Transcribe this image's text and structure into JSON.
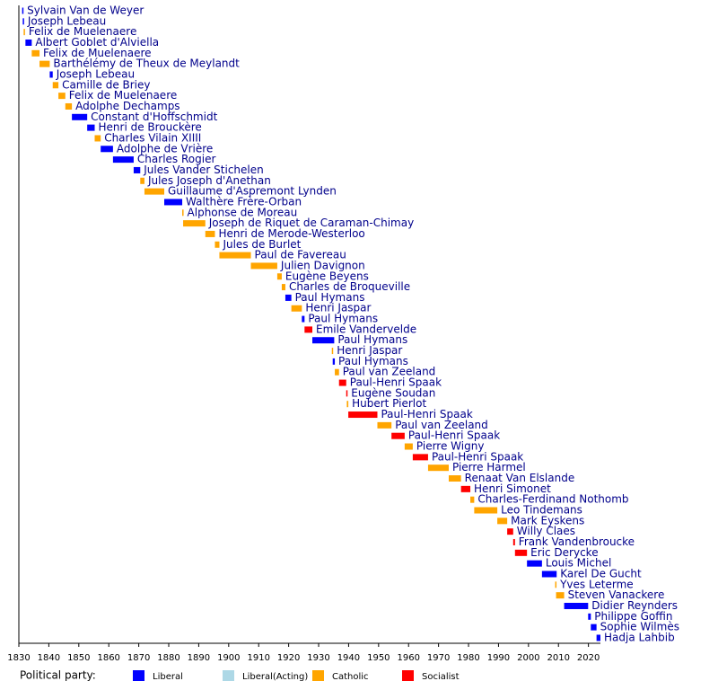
{
  "chart_data": {
    "type": "timeline",
    "xlim": [
      1830,
      2024
    ],
    "xticks": [
      1830,
      1840,
      1850,
      1860,
      1870,
      1880,
      1890,
      1900,
      1910,
      1920,
      1930,
      1940,
      1950,
      1960,
      1970,
      1980,
      1990,
      2000,
      2010,
      2020
    ],
    "legend_title": "Political party:",
    "parties": [
      {
        "name": "Liberal",
        "color": "#0000ff"
      },
      {
        "name": "Liberal(Acting)",
        "color": "#add8e6"
      },
      {
        "name": "Catholic",
        "color": "#ffa500"
      },
      {
        "name": "Socialist",
        "color": "#ff0000"
      }
    ],
    "tasks": [
      {
        "name": "Sylvain Van de Weyer",
        "start": 1831.1,
        "end": 1831.3,
        "party": "Liberal"
      },
      {
        "name": "Joseph Lebeau",
        "start": 1831.3,
        "end": 1831.6,
        "party": "Liberal"
      },
      {
        "name": "Felix de Muelenaere",
        "start": 1831.6,
        "end": 1831.9,
        "party": "Catholic"
      },
      {
        "name": "Albert Goblet d'Alviella",
        "start": 1832.2,
        "end": 1834.3,
        "party": "Liberal"
      },
      {
        "name": "Felix de Muelenaere",
        "start": 1834.3,
        "end": 1836.9,
        "party": "Catholic"
      },
      {
        "name": "Barthélémy de Theux de Meylandt",
        "start": 1836.9,
        "end": 1840.3,
        "party": "Catholic"
      },
      {
        "name": "Joseph Lebeau",
        "start": 1840.3,
        "end": 1841.3,
        "party": "Liberal"
      },
      {
        "name": "Camille de Briey",
        "start": 1841.3,
        "end": 1843.2,
        "party": "Catholic"
      },
      {
        "name": "Felix de Muelenaere",
        "start": 1843.2,
        "end": 1845.5,
        "party": "Catholic"
      },
      {
        "name": "Adolphe Dechamps",
        "start": 1845.5,
        "end": 1847.7,
        "party": "Catholic"
      },
      {
        "name": "Constant d'Hoffschmidt",
        "start": 1847.7,
        "end": 1852.8,
        "party": "Liberal"
      },
      {
        "name": "Henri de Brouckère",
        "start": 1852.8,
        "end": 1855.3,
        "party": "Liberal"
      },
      {
        "name": "Charles Vilain XIIII",
        "start": 1855.3,
        "end": 1857.3,
        "party": "Catholic"
      },
      {
        "name": "Adolphe de Vrière",
        "start": 1857.3,
        "end": 1861.4,
        "party": "Liberal"
      },
      {
        "name": "Charles Rogier",
        "start": 1861.4,
        "end": 1868.3,
        "party": "Liberal"
      },
      {
        "name": "Jules Vander Stichelen",
        "start": 1868.3,
        "end": 1870.5,
        "party": "Liberal"
      },
      {
        "name": "Jules Joseph d'Anethan",
        "start": 1870.5,
        "end": 1871.9,
        "party": "Catholic"
      },
      {
        "name": "Guillaume d'Aspremont Lynden",
        "start": 1871.9,
        "end": 1878.5,
        "party": "Catholic"
      },
      {
        "name": "Walthère Frère-Orban",
        "start": 1878.5,
        "end": 1884.5,
        "party": "Liberal"
      },
      {
        "name": "Alphonse de Moreau",
        "start": 1884.5,
        "end": 1884.8,
        "party": "Catholic"
      },
      {
        "name": "Joseph de Riquet de Caraman-Chimay",
        "start": 1884.8,
        "end": 1892.2,
        "party": "Catholic"
      },
      {
        "name": "Henri de Merode-Westerloo",
        "start": 1892.2,
        "end": 1895.4,
        "party": "Catholic"
      },
      {
        "name": "Jules de Burlet",
        "start": 1895.4,
        "end": 1896.9,
        "party": "Catholic"
      },
      {
        "name": "Paul de Favereau",
        "start": 1896.9,
        "end": 1907.4,
        "party": "Catholic"
      },
      {
        "name": "Julien Davignon",
        "start": 1907.4,
        "end": 1916.2,
        "party": "Catholic"
      },
      {
        "name": "Eugène Beyens",
        "start": 1916.2,
        "end": 1917.7,
        "party": "Catholic"
      },
      {
        "name": "Charles de Broqueville",
        "start": 1917.7,
        "end": 1918.9,
        "party": "Catholic"
      },
      {
        "name": "Paul Hymans",
        "start": 1918.9,
        "end": 1920.9,
        "party": "Liberal"
      },
      {
        "name": "Henri Jaspar",
        "start": 1920.9,
        "end": 1924.4,
        "party": "Catholic"
      },
      {
        "name": "Paul Hymans",
        "start": 1924.4,
        "end": 1925.3,
        "party": "Liberal"
      },
      {
        "name": "Emile Vandervelde",
        "start": 1925.3,
        "end": 1927.9,
        "party": "Socialist"
      },
      {
        "name": "Paul Hymans",
        "start": 1927.9,
        "end": 1935.2,
        "party": "Liberal"
      },
      {
        "name": "Henri Jaspar",
        "start": 1934.4,
        "end": 1934.7,
        "party": "Catholic"
      },
      {
        "name": "Paul Hymans",
        "start": 1934.7,
        "end": 1935.4,
        "party": "Liberal"
      },
      {
        "name": "Paul van Zeeland",
        "start": 1935.4,
        "end": 1936.8,
        "party": "Catholic"
      },
      {
        "name": "Paul-Henri Spaak",
        "start": 1936.8,
        "end": 1939.2,
        "party": "Socialist"
      },
      {
        "name": "Eugène Soudan",
        "start": 1939.2,
        "end": 1939.4,
        "party": "Socialist"
      },
      {
        "name": "Hubert Pierlot",
        "start": 1939.4,
        "end": 1939.9,
        "party": "Catholic"
      },
      {
        "name": "Paul-Henri Spaak",
        "start": 1939.9,
        "end": 1949.6,
        "party": "Socialist"
      },
      {
        "name": "Paul van Zeeland",
        "start": 1949.6,
        "end": 1954.3,
        "party": "Catholic"
      },
      {
        "name": "Paul-Henri Spaak",
        "start": 1954.3,
        "end": 1958.7,
        "party": "Socialist"
      },
      {
        "name": "Pierre Wigny",
        "start": 1958.7,
        "end": 1961.4,
        "party": "Catholic"
      },
      {
        "name": "Paul-Henri Spaak",
        "start": 1961.4,
        "end": 1966.5,
        "party": "Socialist"
      },
      {
        "name": "Pierre Harmel",
        "start": 1966.5,
        "end": 1973.4,
        "party": "Catholic"
      },
      {
        "name": "Renaat Van Elslande",
        "start": 1973.4,
        "end": 1977.5,
        "party": "Catholic"
      },
      {
        "name": "Henri Simonet",
        "start": 1977.5,
        "end": 1980.6,
        "party": "Socialist"
      },
      {
        "name": "Charles-Ferdinand Nothomb",
        "start": 1980.6,
        "end": 1981.9,
        "party": "Catholic"
      },
      {
        "name": "Leo Tindemans",
        "start": 1981.9,
        "end": 1989.6,
        "party": "Catholic"
      },
      {
        "name": "Mark Eyskens",
        "start": 1989.6,
        "end": 1992.9,
        "party": "Catholic"
      },
      {
        "name": "Willy Claes",
        "start": 1992.9,
        "end": 1994.9,
        "party": "Socialist"
      },
      {
        "name": "Frank Vandenbroucke",
        "start": 1994.9,
        "end": 1995.5,
        "party": "Socialist"
      },
      {
        "name": "Eric Derycke",
        "start": 1995.5,
        "end": 1999.5,
        "party": "Socialist"
      },
      {
        "name": "Louis Michel",
        "start": 1999.5,
        "end": 2004.5,
        "party": "Liberal"
      },
      {
        "name": "Karel De Gucht",
        "start": 2004.5,
        "end": 2009.4,
        "party": "Liberal"
      },
      {
        "name": "Yves Leterme",
        "start": 2008.9,
        "end": 2009.2,
        "party": "Catholic"
      },
      {
        "name": "Steven Vanackere",
        "start": 2009.2,
        "end": 2011.9,
        "party": "Catholic"
      },
      {
        "name": "Didier Reynders",
        "start": 2011.9,
        "end": 2019.9,
        "party": "Liberal"
      },
      {
        "name": "Philippe Goffin",
        "start": 2019.9,
        "end": 2020.8,
        "party": "Liberal"
      },
      {
        "name": "Sophie Wilmès",
        "start": 2020.8,
        "end": 2022.7,
        "party": "Liberal"
      },
      {
        "name": "Hadja Lahbib",
        "start": 2022.7,
        "end": 2024.0,
        "party": "Liberal"
      }
    ]
  }
}
